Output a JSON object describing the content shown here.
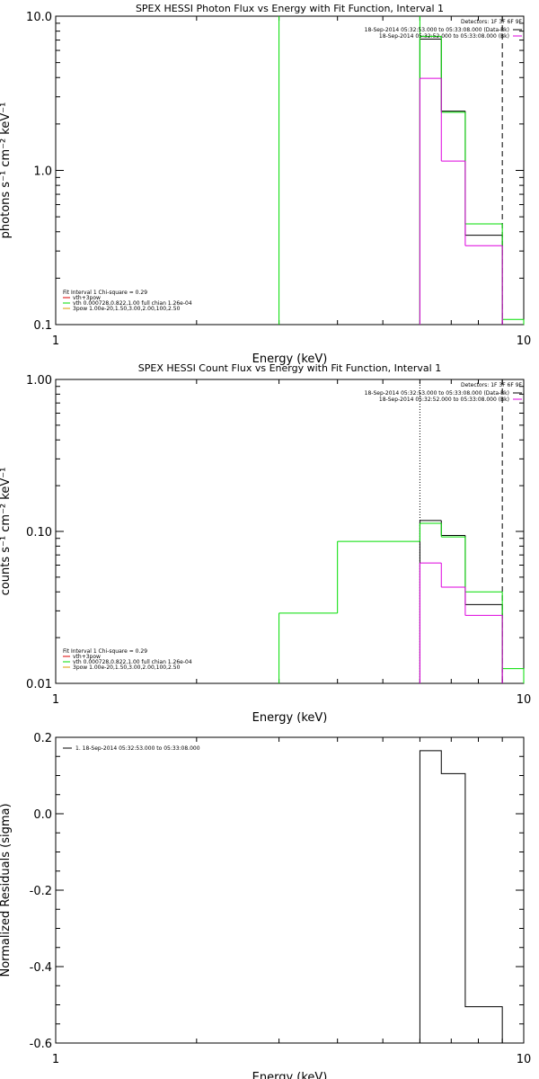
{
  "colors": {
    "black": "#000000",
    "green": "#00dd00",
    "magenta": "#dd00dd",
    "red": "#dd0000",
    "orange": "#dd9900"
  },
  "chart_data": [
    {
      "type": "line",
      "title": "SPEX HESSI Photon Flux vs Energy with Fit Function, Interval 1",
      "xlabel": "Energy (keV)",
      "ylabel": "photons s⁻¹ cm⁻² keV⁻¹",
      "xscale": "log",
      "yscale": "log",
      "xlim": [
        1,
        10
      ],
      "ylim": [
        0.1,
        10
      ],
      "xticks": [
        {
          "v": 1,
          "label": "1"
        },
        {
          "v": 10,
          "label": "10"
        }
      ],
      "yticks": [
        {
          "v": 0.1,
          "label": "0.1"
        },
        {
          "v": 1,
          "label": "1.0"
        },
        {
          "v": 10,
          "label": "10.0"
        }
      ],
      "legend_right": {
        "header": "Detectors: 1F 3F 6F 9F",
        "entries": [
          {
            "text": "18-Sep-2014 05:32:53.000 to 05:33:08.000 (Data-Bk)",
            "color": "black"
          },
          {
            "text": "18-Sep-2014 05:32:52.000 to 05:33:08.000 (Bk)",
            "color": "magenta"
          }
        ]
      },
      "legend_left": {
        "header": "Fit Interval 1    Chi-square = 0.29",
        "entries": [
          {
            "text": "vth+3pow",
            "color": "red"
          },
          {
            "text": "vth 0.000728,0.822,1.00  full chian 1.26e-04",
            "color": "green"
          },
          {
            "text": "3pow 1.00e-20,1.50,3.00,2.00,100,2.50",
            "color": "orange"
          }
        ]
      },
      "vlines": [
        {
          "x": 3,
          "style": "solid",
          "color": "green"
        },
        {
          "x": 6,
          "style": "solid",
          "color": "green"
        },
        {
          "x": 9,
          "style": "dashed",
          "color": "black"
        }
      ],
      "series": [
        {
          "color": "black",
          "bins": [
            [
              6,
              6.667,
              7.1
            ],
            [
              6.667,
              7.5,
              2.42
            ],
            [
              7.5,
              9,
              0.38
            ]
          ]
        },
        {
          "color": "green",
          "bins": [
            [
              6,
              6.667,
              7.4
            ],
            [
              6.667,
              7.5,
              2.38
            ],
            [
              7.5,
              9,
              0.45
            ],
            [
              9,
              10,
              0.108
            ]
          ]
        },
        {
          "color": "magenta",
          "bins": [
            [
              6,
              6.667,
              3.95
            ],
            [
              6.667,
              7.5,
              1.15
            ],
            [
              7.5,
              9,
              0.325
            ]
          ]
        }
      ]
    },
    {
      "type": "line",
      "title": "SPEX HESSI Count Flux vs Energy with Fit Function, Interval 1",
      "xlabel": "Energy (keV)",
      "ylabel": "counts s⁻¹ cm⁻² keV⁻¹",
      "xscale": "log",
      "yscale": "log",
      "xlim": [
        1,
        10
      ],
      "ylim": [
        0.01,
        1
      ],
      "xticks": [
        {
          "v": 1,
          "label": "1"
        },
        {
          "v": 10,
          "label": "10"
        }
      ],
      "yticks": [
        {
          "v": 0.01,
          "label": "0.01"
        },
        {
          "v": 0.1,
          "label": "0.10"
        },
        {
          "v": 1,
          "label": "1.00"
        }
      ],
      "legend_right": {
        "header": "Detectors: 1F 3F 6F 9F",
        "entries": [
          {
            "text": "18-Sep-2014 05:32:53.000 to 05:33:08.000 (Data-Bk)",
            "color": "black"
          },
          {
            "text": "18-Sep-2014 05:32:52.000 to 05:33:08.000 (Bk)",
            "color": "magenta"
          }
        ]
      },
      "legend_left": {
        "header": "Fit Interval 1    Chi-square = 0.29",
        "entries": [
          {
            "text": "vth+3pow",
            "color": "red"
          },
          {
            "text": "vth 0.000728,0.822,1.00  full chian 1.26e-04",
            "color": "green"
          },
          {
            "text": "3pow 1.00e-20,1.50,3.00,2.00,100,2.50",
            "color": "orange"
          }
        ]
      },
      "vlines": [
        {
          "x": 6,
          "style": "dotted",
          "color": "black"
        },
        {
          "x": 9,
          "style": "dashed",
          "color": "black"
        }
      ],
      "series": [
        {
          "color": "black",
          "bins": [
            [
              6,
              6.667,
              0.118
            ],
            [
              6.667,
              7.5,
              0.094
            ],
            [
              7.5,
              9,
              0.033
            ]
          ]
        },
        {
          "color": "green",
          "bins": [
            [
              3,
              4,
              0.029
            ],
            [
              4,
              6,
              0.086
            ],
            [
              6,
              6.667,
              0.113
            ],
            [
              6.667,
              7.5,
              0.092
            ],
            [
              7.5,
              9,
              0.04
            ],
            [
              9,
              10,
              0.0125
            ]
          ]
        },
        {
          "color": "magenta",
          "bins": [
            [
              6,
              6.667,
              0.062
            ],
            [
              6.667,
              7.5,
              0.043
            ],
            [
              7.5,
              9,
              0.028
            ]
          ]
        }
      ]
    },
    {
      "type": "line",
      "xlabel": "Energy (keV)",
      "ylabel": "Normalized Residuals (sigma)",
      "xscale": "log",
      "yscale": "linear",
      "xlim": [
        1,
        10
      ],
      "ylim": [
        -0.6,
        0.2
      ],
      "xticks": [
        {
          "v": 1,
          "label": "1"
        },
        {
          "v": 10,
          "label": "10"
        }
      ],
      "yticks": [
        {
          "v": -0.6,
          "label": "-0.6"
        },
        {
          "v": -0.4,
          "label": "-0.4"
        },
        {
          "v": -0.2,
          "label": "-0.2"
        },
        {
          "v": 0,
          "label": "0.0"
        },
        {
          "v": 0.2,
          "label": "0.2"
        }
      ],
      "legend_left": {
        "header": "",
        "entries": [
          {
            "text": "1. 18-Sep-2014 05:32:53.000 to 05:33:08.000",
            "color": "black"
          }
        ]
      },
      "vlines": [],
      "series": [
        {
          "color": "black",
          "baseline": -0.6,
          "bins": [
            [
              6,
              6.667,
              0.165
            ],
            [
              6.667,
              7.5,
              0.105
            ],
            [
              7.5,
              9,
              -0.505
            ]
          ]
        }
      ]
    }
  ]
}
